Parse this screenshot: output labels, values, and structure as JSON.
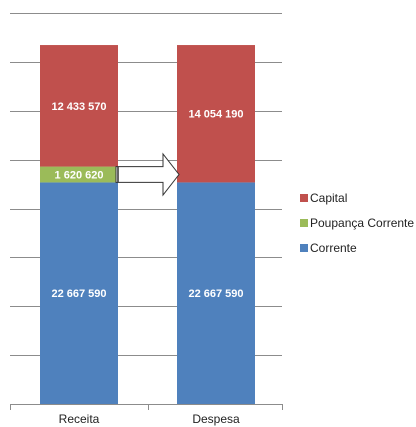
{
  "chart_data": {
    "type": "bar",
    "stacked": true,
    "categories": [
      "Receita",
      "Despesa"
    ],
    "ylim": [
      0,
      40000000
    ],
    "grid": true,
    "legend_position": "right",
    "series": [
      {
        "name": "Corrente",
        "color": "#4F81BD",
        "values": [
          22667590,
          22667590
        ],
        "labels": [
          "22 667 590",
          "22 667 590"
        ]
      },
      {
        "name": "Poupança Corrente",
        "color": "#9BBB59",
        "values": [
          1620620,
          0
        ],
        "labels": [
          "1 620 620",
          ""
        ]
      },
      {
        "name": "Capital",
        "color": "#C0504D",
        "values": [
          12433570,
          14054190
        ],
        "labels": [
          "12 433 570",
          "14 054 190"
        ]
      }
    ],
    "annotation": "arrow from Receita 'Poupança Corrente' segment to Despesa"
  },
  "legend": {
    "items": [
      {
        "label": "Capital",
        "color": "#C0504D"
      },
      {
        "label": "Poupança Corrente",
        "color": "#9BBB59"
      },
      {
        "label": "Corrente",
        "color": "#4F81BD"
      }
    ]
  }
}
